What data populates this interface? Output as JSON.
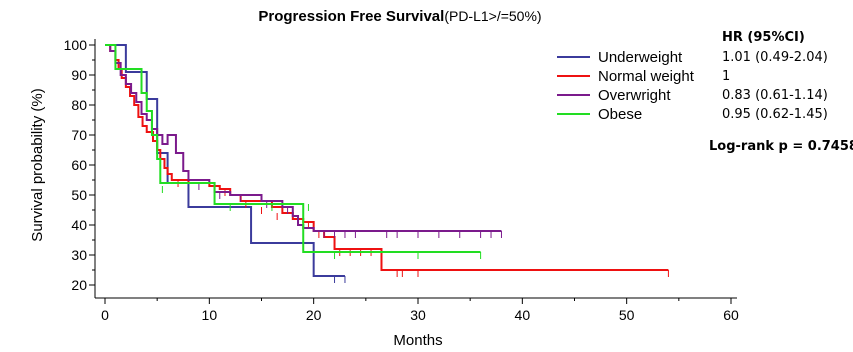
{
  "chart_data": {
    "type": "line",
    "title_bold": "Progression Free Survival",
    "title_rest": "(PD-L1>/=50%)",
    "xlabel": "Months",
    "ylabel": "Survival probability (%)",
    "xlim": [
      0,
      60
    ],
    "ylim": [
      17,
      102
    ],
    "x_ticks": [
      0,
      10,
      20,
      30,
      40,
      50,
      60
    ],
    "y_ticks": [
      20,
      30,
      40,
      50,
      60,
      70,
      80,
      90,
      100
    ],
    "grid": false,
    "legend_position": "top-right",
    "hr_header": "HR (95%CI)",
    "logrank": "Log-rank p = 0.7458",
    "series": [
      {
        "name": "Underweight",
        "color": "#3b3b9c",
        "hr": "1.01 (0.49-2.04)",
        "points": [
          [
            0,
            100
          ],
          [
            2,
            91
          ],
          [
            4,
            91
          ],
          [
            4,
            82
          ],
          [
            5,
            82
          ],
          [
            5,
            64
          ],
          [
            6,
            64
          ],
          [
            6,
            54
          ],
          [
            8,
            54
          ],
          [
            8,
            46
          ],
          [
            14,
            46
          ],
          [
            14,
            34
          ],
          [
            20,
            34
          ],
          [
            20,
            23
          ],
          [
            23,
            23
          ]
        ],
        "censored": [
          [
            22,
            23
          ],
          [
            23,
            23
          ]
        ]
      },
      {
        "name": "Normal weight",
        "color": "#ee1111",
        "hr": "1",
        "points": [
          [
            0,
            100
          ],
          [
            0.5,
            98
          ],
          [
            1,
            95
          ],
          [
            1.3,
            92
          ],
          [
            1.6,
            89
          ],
          [
            2,
            86
          ],
          [
            2.4,
            83
          ],
          [
            2.8,
            80
          ],
          [
            3.2,
            76
          ],
          [
            3.6,
            73
          ],
          [
            4,
            71
          ],
          [
            4.6,
            68
          ],
          [
            5,
            65
          ],
          [
            5.3,
            62
          ],
          [
            5.7,
            59
          ],
          [
            6,
            57
          ],
          [
            6.4,
            55
          ],
          [
            7,
            55
          ],
          [
            8,
            54
          ],
          [
            10,
            53
          ],
          [
            11,
            52
          ],
          [
            12,
            50
          ],
          [
            13,
            48
          ],
          [
            16,
            46
          ],
          [
            17,
            44
          ],
          [
            18,
            42
          ],
          [
            19,
            41
          ],
          [
            20,
            38
          ],
          [
            21,
            36
          ],
          [
            22,
            32
          ],
          [
            26,
            32
          ],
          [
            26.5,
            25
          ],
          [
            54,
            25
          ]
        ],
        "censored": [
          [
            7,
            55
          ],
          [
            11.5,
            52
          ],
          [
            13.5,
            48
          ],
          [
            15,
            46
          ],
          [
            16.5,
            44
          ],
          [
            18.5,
            42
          ],
          [
            19.5,
            41
          ],
          [
            20.5,
            38
          ],
          [
            22.5,
            32
          ],
          [
            23.5,
            32
          ],
          [
            24.5,
            32
          ],
          [
            25.5,
            32
          ],
          [
            28,
            25
          ],
          [
            28.5,
            25
          ],
          [
            30,
            25
          ],
          [
            54,
            25
          ]
        ]
      },
      {
        "name": "Overwright",
        "color": "#7b1a8c",
        "hr": "0.83 (0.61-1.14)",
        "points": [
          [
            0,
            100
          ],
          [
            0.5,
            98
          ],
          [
            1,
            94
          ],
          [
            1.5,
            90
          ],
          [
            2,
            87
          ],
          [
            2.5,
            84
          ],
          [
            3,
            81
          ],
          [
            3.5,
            77
          ],
          [
            4,
            75
          ],
          [
            4.5,
            72
          ],
          [
            5,
            70
          ],
          [
            5.5,
            67
          ],
          [
            6,
            70
          ],
          [
            6.8,
            70
          ],
          [
            6.8,
            64
          ],
          [
            7.5,
            64
          ],
          [
            7.5,
            58
          ],
          [
            8,
            55
          ],
          [
            10,
            54
          ],
          [
            10.5,
            51
          ],
          [
            12,
            50
          ],
          [
            14,
            50
          ],
          [
            15,
            48
          ],
          [
            17,
            46
          ],
          [
            18,
            43
          ],
          [
            18.5,
            40
          ],
          [
            19,
            39
          ],
          [
            20,
            38
          ],
          [
            38,
            38
          ]
        ],
        "censored": [
          [
            9,
            54
          ],
          [
            11,
            51
          ],
          [
            13,
            50
          ],
          [
            15.5,
            48
          ],
          [
            17.5,
            46
          ],
          [
            21,
            38
          ],
          [
            22,
            38
          ],
          [
            23,
            38
          ],
          [
            24,
            38
          ],
          [
            27,
            38
          ],
          [
            28,
            38
          ],
          [
            30,
            38
          ],
          [
            32,
            38
          ],
          [
            34,
            38
          ],
          [
            36,
            38
          ],
          [
            37,
            38
          ],
          [
            38,
            38
          ]
        ]
      },
      {
        "name": "Obese",
        "color": "#22dd22",
        "hr": "0.95 (0.62-1.45)",
        "points": [
          [
            0,
            100
          ],
          [
            1,
            100
          ],
          [
            1,
            92
          ],
          [
            3,
            92
          ],
          [
            3.5,
            84
          ],
          [
            4,
            78
          ],
          [
            4.5,
            70
          ],
          [
            5,
            62
          ],
          [
            5.3,
            54
          ],
          [
            7,
            54
          ],
          [
            10.5,
            54
          ],
          [
            10.5,
            47
          ],
          [
            19,
            47
          ],
          [
            19,
            31
          ],
          [
            36,
            31
          ]
        ],
        "censored": [
          [
            5.5,
            53
          ],
          [
            12,
            47
          ],
          [
            16,
            47
          ],
          [
            19.5,
            47
          ],
          [
            22,
            31
          ],
          [
            30,
            31
          ],
          [
            36,
            31
          ]
        ]
      }
    ]
  }
}
